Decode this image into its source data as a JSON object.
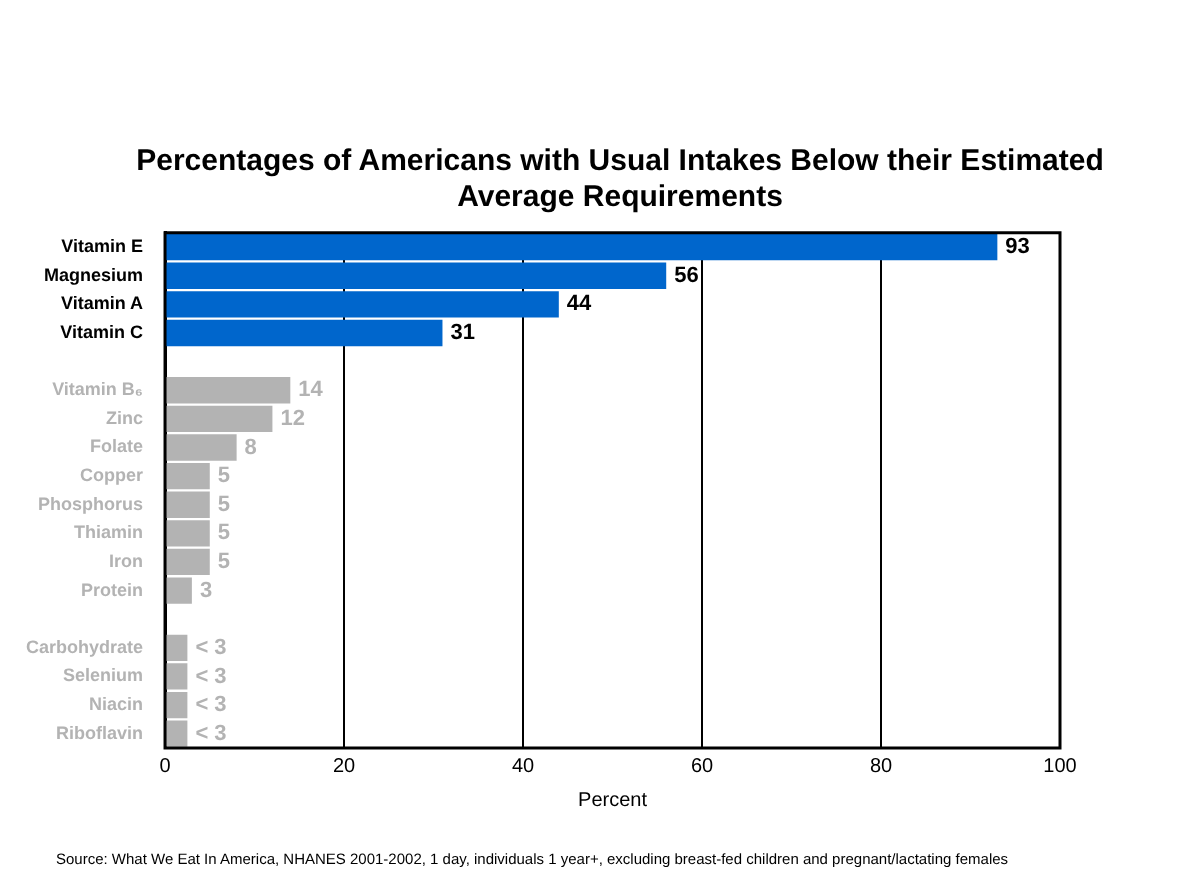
{
  "chart_data": {
    "type": "bar",
    "orientation": "horizontal",
    "title": "Percentages of Americans with Usual Intakes Below their Estimated Average Requirements",
    "xlabel": "Percent",
    "categories": [
      "Vitamin E",
      "Magnesium",
      "Vitamin A",
      "Vitamin C",
      null,
      "Vitamin B₆",
      "Zinc",
      "Folate",
      "Copper",
      "Phosphorus",
      "Thiamin",
      "Iron",
      "Protein",
      null,
      "Carbohydrate",
      "Selenium",
      "Niacin",
      "Riboflavin"
    ],
    "values": [
      93,
      56,
      44,
      31,
      null,
      14,
      12,
      8,
      5,
      5,
      5,
      5,
      3,
      null,
      2.5,
      2.5,
      2.5,
      2.5
    ],
    "value_labels": [
      "93",
      "56",
      "44",
      "31",
      null,
      "14",
      "12",
      "8",
      "5",
      "5",
      "5",
      "5",
      "3",
      null,
      "< 3",
      "< 3",
      "< 3",
      "< 3"
    ],
    "colors": [
      "#0066cc",
      "#0066cc",
      "#0066cc",
      "#0066cc",
      null,
      "#b3b3b3",
      "#b3b3b3",
      "#b3b3b3",
      "#b3b3b3",
      "#b3b3b3",
      "#b3b3b3",
      "#b3b3b3",
      "#b3b3b3",
      null,
      "#b3b3b3",
      "#b3b3b3",
      "#b3b3b3",
      "#b3b3b3"
    ],
    "xlim": [
      0,
      100
    ],
    "xticks": [
      0,
      20,
      40,
      60,
      80,
      100
    ],
    "grid": "x",
    "legend": false,
    "annotations": [
      "Source:  What We Eat In America, NHANES 2001-2002, 1 day, individuals 1 year+, excluding breast-fed children and pregnant/lactating females"
    ]
  }
}
